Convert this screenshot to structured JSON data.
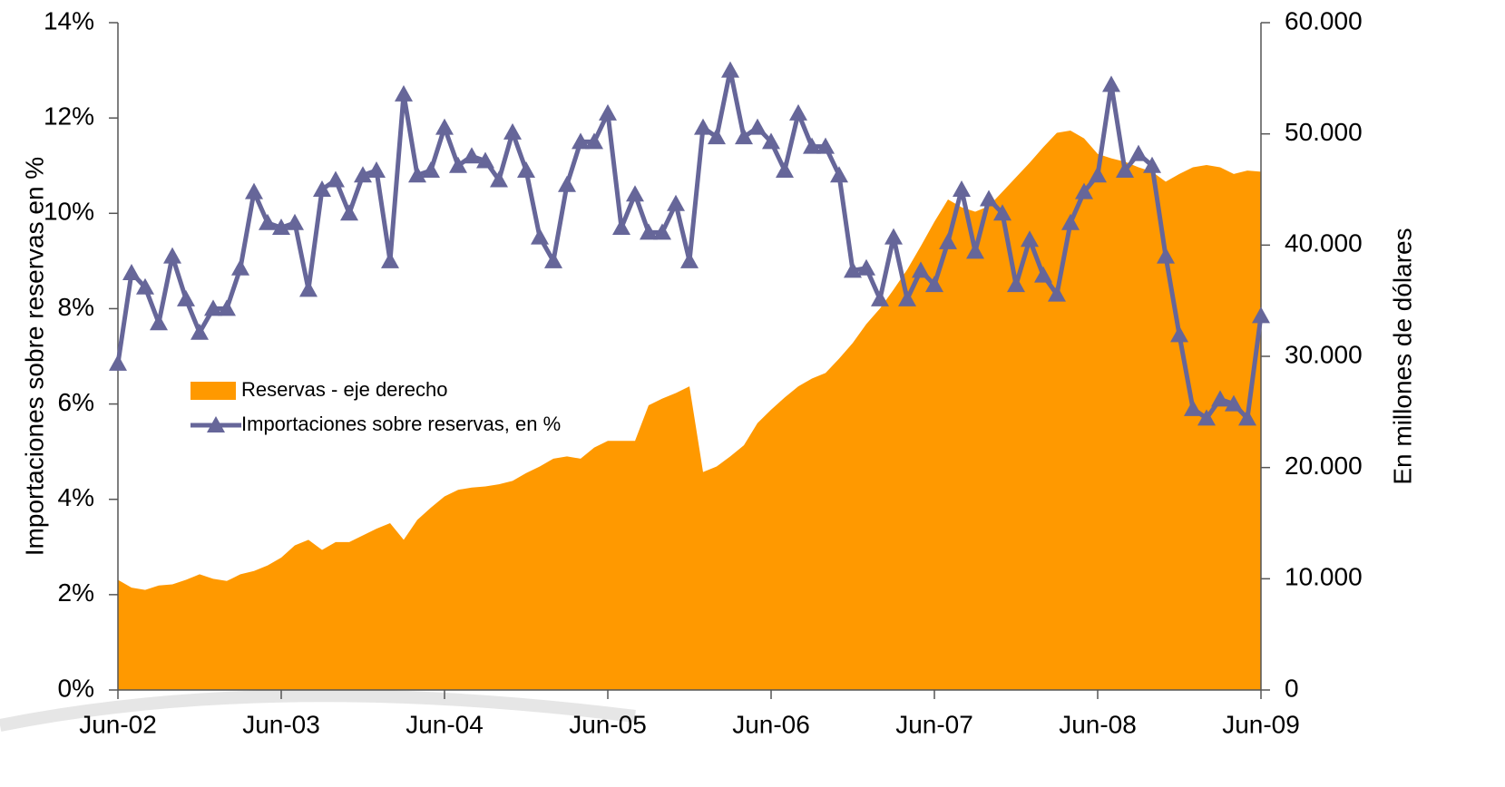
{
  "chart_data": {
    "type": "line",
    "y_label": "Importaciones sobre reservas en %",
    "y2_label": "En millones de dólares",
    "categories": [
      "Jun-02",
      null,
      null,
      null,
      null,
      null,
      null,
      null,
      null,
      null,
      null,
      null,
      "Jun-03",
      null,
      null,
      null,
      null,
      null,
      null,
      null,
      null,
      null,
      null,
      null,
      "Jun-04",
      null,
      null,
      null,
      null,
      null,
      null,
      null,
      null,
      null,
      null,
      null,
      "Jun-05",
      null,
      null,
      null,
      null,
      null,
      null,
      null,
      null,
      null,
      null,
      null,
      "Jun-06",
      null,
      null,
      null,
      null,
      null,
      null,
      null,
      null,
      null,
      null,
      null,
      "Jun-07",
      null,
      null,
      null,
      null,
      null,
      null,
      null,
      null,
      null,
      null,
      null,
      "Jun-08",
      null,
      null,
      null,
      null,
      null,
      null,
      null,
      null,
      null,
      null,
      null,
      "Jun-09"
    ],
    "series": [
      {
        "name": "Reservas - eje derecho",
        "type": "area",
        "axis": "y2",
        "color": "#ff9900",
        "values": [
          9900,
          9200,
          9000,
          9400,
          9500,
          9900,
          10400,
          10000,
          9800,
          10400,
          10700,
          11200,
          11900,
          13000,
          13500,
          12600,
          13300,
          13300,
          13900,
          14500,
          15000,
          13500,
          15300,
          16400,
          17400,
          18000,
          18200,
          18300,
          18500,
          18800,
          19500,
          20100,
          20800,
          21000,
          20800,
          21800,
          22400,
          22400,
          22400,
          25600,
          26200,
          26700,
          27300,
          19600,
          20100,
          21000,
          22000,
          24000,
          25200,
          26300,
          27300,
          28000,
          28500,
          29800,
          31200,
          32900,
          34300,
          36000,
          37800,
          39900,
          42100,
          44100,
          43400,
          43000,
          43500,
          44800,
          46100,
          47400,
          48800,
          50100,
          50300,
          49600,
          48200,
          47800,
          47500,
          47000,
          46600,
          45700,
          46400,
          47000,
          47200,
          47000,
          46400,
          46700,
          46600
        ]
      },
      {
        "name": "Importaciones sobre reservas, en %",
        "type": "line",
        "color": "#666699",
        "values": [
          6.85,
          8.75,
          8.45,
          7.7,
          9.1,
          8.2,
          7.5,
          8.0,
          8.0,
          8.85,
          10.45,
          9.8,
          9.7,
          9.8,
          8.4,
          10.5,
          10.7,
          10.0,
          10.8,
          10.9,
          9.0,
          12.5,
          10.8,
          10.9,
          11.8,
          11.0,
          11.2,
          11.1,
          10.7,
          11.7,
          10.9,
          9.5,
          9.0,
          10.6,
          11.5,
          11.5,
          12.1,
          9.7,
          10.4,
          9.6,
          9.6,
          10.2,
          9.0,
          11.8,
          11.6,
          13.0,
          11.6,
          11.8,
          11.5,
          10.9,
          12.1,
          11.4,
          11.4,
          10.8,
          8.8,
          8.85,
          8.2,
          9.5,
          8.2,
          8.8,
          8.5,
          9.4,
          10.5,
          9.2,
          10.3,
          10.0,
          8.5,
          9.45,
          8.7,
          8.3,
          9.8,
          10.45,
          10.8,
          12.7,
          10.9,
          11.25,
          11.0,
          9.1,
          7.45,
          5.9,
          5.7,
          6.1,
          6.0,
          5.7,
          7.85
        ]
      }
    ],
    "ylim": [
      0,
      14
    ],
    "yticks": [
      {
        "value": 0,
        "label": "0%"
      },
      {
        "value": 2,
        "label": "2%"
      },
      {
        "value": 4,
        "label": "4%"
      },
      {
        "value": 6,
        "label": "6%"
      },
      {
        "value": 8,
        "label": "8%"
      },
      {
        "value": 10,
        "label": "10%"
      },
      {
        "value": 12,
        "label": "12%"
      },
      {
        "value": 14,
        "label": "14%"
      }
    ],
    "y2lim": [
      0,
      60000
    ],
    "y2ticks": [
      0,
      {
        "value": 10000,
        "label": "10.000"
      },
      {
        "value": 20000,
        "label": "20.000"
      },
      {
        "value": 30000,
        "label": "30.000"
      },
      {
        "value": 40000,
        "label": "40.000"
      },
      {
        "value": 50000,
        "label": "50.000"
      },
      {
        "value": 60000,
        "label": "60.000"
      }
    ],
    "grid": false,
    "legend": "center-left"
  }
}
